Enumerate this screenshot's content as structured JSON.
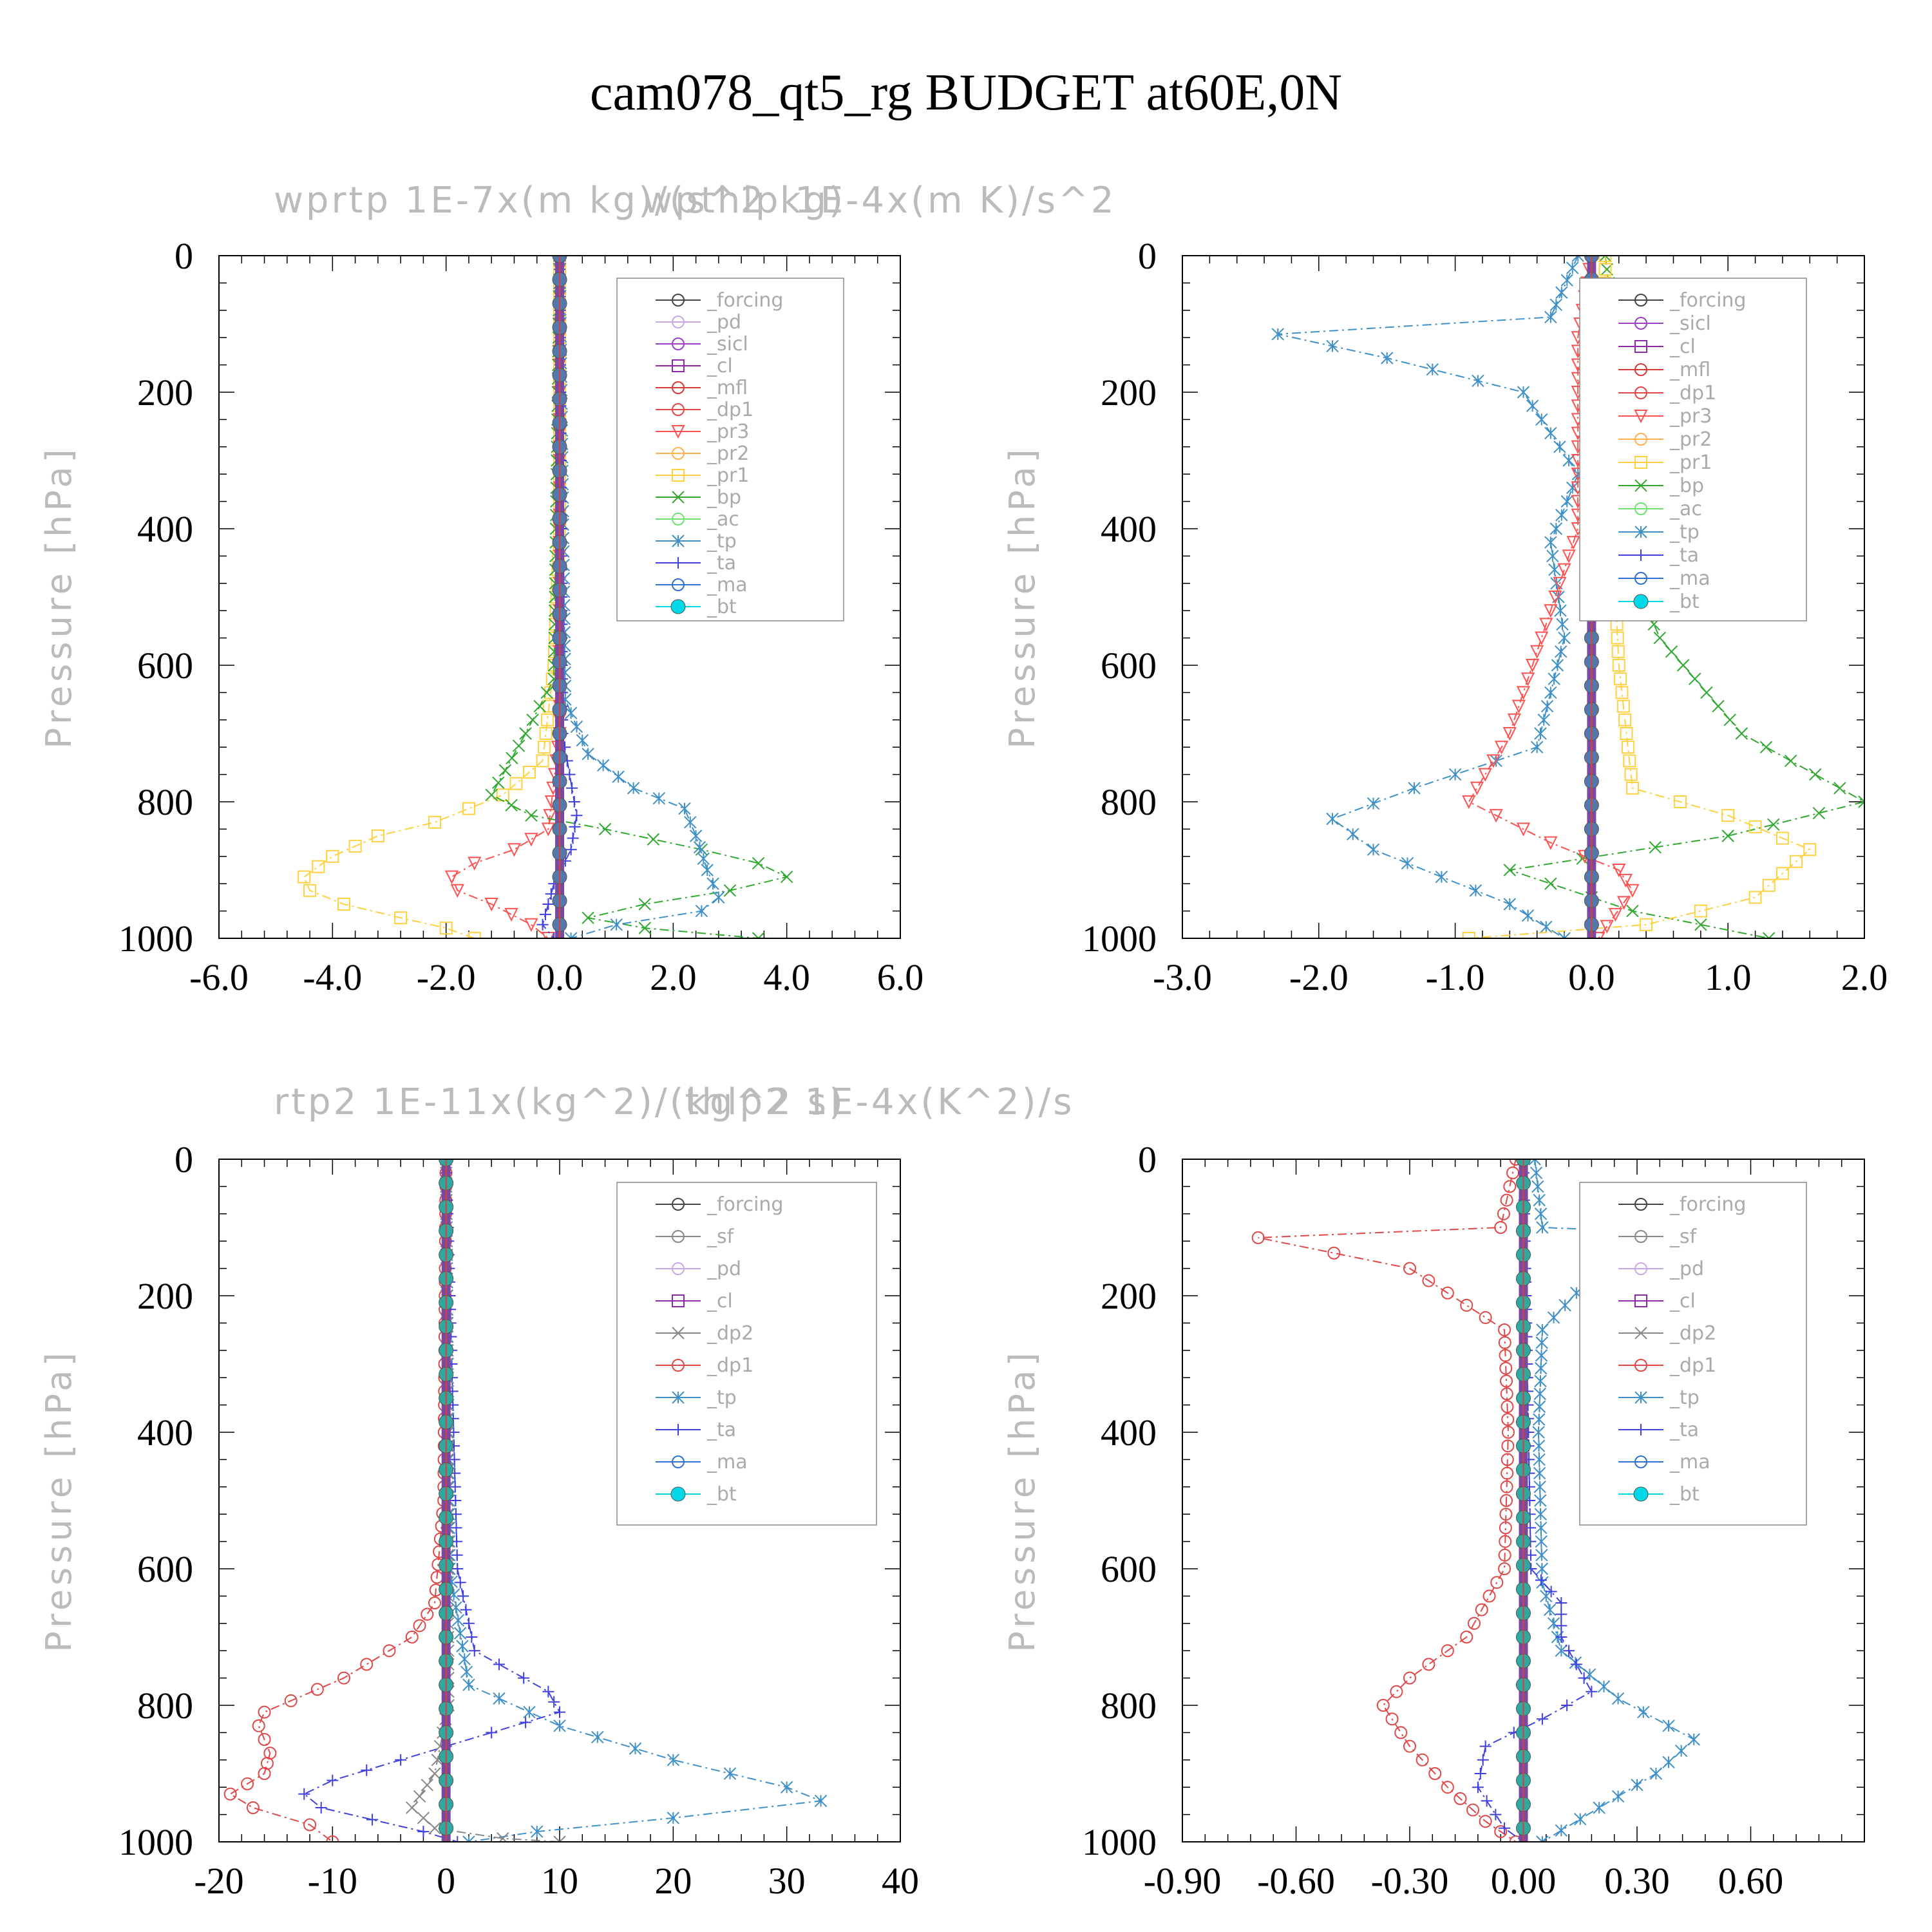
{
  "figure": {
    "title": "cam078_qt5_rg  BUDGET at60E,0N"
  },
  "colors": {
    "_forcing": "#444444",
    "_pd": "#c8a8e8",
    "_sicl": "#9a40c8",
    "_cl": "#8a2aa8",
    "_mfl": "#d83838",
    "_dp1": "#e04848",
    "_pr3": "#ff5050",
    "_pr2": "#ffb050",
    "_pr1": "#ffd040",
    "_bp": "#30a830",
    "_ac": "#70e070",
    "_tp": "#4090c8",
    "_ta": "#4040e0",
    "_ma": "#3070d0",
    "_bt": "#00d8e8"
  },
  "chart_data": [
    {
      "id": "wprtp",
      "type": "line",
      "title": "wprtp  1E-7x(m kg)/(s^2 kg)",
      "xlabel": "",
      "ylabel": "Pressure [hPa]",
      "xlim": [
        -6,
        6
      ],
      "ylim": [
        1000,
        0
      ],
      "xticks": [
        "-6.0",
        "-4.0",
        "-2.0",
        "0.0",
        "2.0",
        "4.0",
        "6.0"
      ],
      "xtick_values": [
        -6,
        -4,
        -2,
        0,
        2,
        4,
        6
      ],
      "yticks": [
        "0",
        "200",
        "400",
        "600",
        "800",
        "1000"
      ],
      "ytick_values": [
        0,
        200,
        400,
        600,
        800,
        1000
      ],
      "legend": [
        "_forcing",
        "_pd",
        "_sicl",
        "_cl",
        "_mfl",
        "_dp1",
        "_pr3",
        "_pr2",
        "_pr1",
        "_bp",
        "_ac",
        "_tp",
        "_ta",
        "_ma",
        "_bt"
      ],
      "series": [
        {
          "name": "_pr1",
          "x": [
            0,
            0,
            -0.1,
            -0.3,
            -1.0,
            -2.2,
            -3.2,
            -4.0,
            -4.5,
            -4.4,
            -3.8,
            -2.8,
            -2.0,
            -1.5
          ],
          "y": [
            0,
            400,
            600,
            740,
            790,
            830,
            850,
            880,
            910,
            930,
            950,
            970,
            985,
            1000
          ]
        },
        {
          "name": "_pr3",
          "x": [
            0,
            0,
            -0.2,
            -0.8,
            -1.5,
            -1.9,
            -1.8,
            -1.2,
            -0.5,
            -0.2
          ],
          "y": [
            0,
            700,
            840,
            870,
            890,
            910,
            930,
            950,
            980,
            1000
          ]
        },
        {
          "name": "_bp",
          "x": [
            0,
            -0.1,
            -0.6,
            -1.2,
            -0.5,
            0.8,
            2.5,
            3.5,
            4.0,
            3.0,
            1.5,
            0.5,
            1.5,
            3.5
          ],
          "y": [
            0,
            620,
            700,
            790,
            820,
            840,
            870,
            890,
            910,
            930,
            950,
            970,
            985,
            1000
          ]
        },
        {
          "name": "_tp",
          "x": [
            0,
            0.1,
            0.5,
            1.3,
            2.2,
            2.4,
            2.6,
            2.8,
            2.5,
            1.0,
            0.2
          ],
          "y": [
            0,
            650,
            730,
            780,
            810,
            850,
            900,
            940,
            960,
            980,
            1000
          ]
        },
        {
          "name": "_ta",
          "x": [
            0,
            0.05,
            0.3,
            0.2,
            -0.1,
            -0.2,
            -0.3,
            -0.1
          ],
          "y": [
            0,
            700,
            820,
            870,
            920,
            950,
            980,
            1000
          ]
        },
        {
          "name": "_bt",
          "x": [
            0,
            0,
            0,
            0,
            0,
            0
          ],
          "y": [
            0,
            200,
            400,
            600,
            800,
            1000
          ]
        }
      ]
    },
    {
      "id": "wpthlp",
      "type": "line",
      "title": "wpthlp  1E-4x(m K)/s^2",
      "xlabel": "",
      "ylabel": "Pressure [hPa]",
      "xlim": [
        -3,
        2
      ],
      "ylim": [
        1000,
        0
      ],
      "xticks": [
        "-3.0",
        "-2.0",
        "-1.0",
        "0.0",
        "1.0",
        "2.0"
      ],
      "xtick_values": [
        -3,
        -2,
        -1,
        0,
        1,
        2
      ],
      "yticks": [
        "0",
        "200",
        "400",
        "600",
        "800",
        "1000"
      ],
      "ytick_values": [
        0,
        200,
        400,
        600,
        800,
        1000
      ],
      "legend": [
        "_forcing",
        "_sicl",
        "_cl",
        "_mfl",
        "_dp1",
        "_pr3",
        "_pr2",
        "_pr1",
        "_bp",
        "_ac",
        "_tp",
        "_ta",
        "_ma",
        "_bt"
      ],
      "series": [
        {
          "name": "_tp",
          "x": [
            -0.1,
            -0.3,
            -2.3,
            -1.5,
            -0.5,
            -0.3,
            -0.1,
            -0.3,
            -0.2,
            -0.4,
            -1.3,
            -1.9,
            -1.6,
            -1.1,
            -0.6,
            -0.2
          ],
          "y": [
            0,
            90,
            115,
            150,
            200,
            260,
            320,
            420,
            560,
            720,
            780,
            825,
            870,
            910,
            950,
            1000
          ]
        },
        {
          "name": "_bp",
          "x": [
            0.1,
            0.15,
            1.1,
            0.5,
            0.25,
            0.2,
            0.5,
            1.1,
            2.0,
            1.0,
            -0.6,
            0.3,
            1.3
          ],
          "y": [
            0,
            80,
            115,
            180,
            300,
            420,
            560,
            700,
            800,
            850,
            900,
            960,
            1000
          ]
        },
        {
          "name": "_pr1",
          "x": [
            0.1,
            0.1,
            1.4,
            0.2,
            0.15,
            0.2,
            0.3,
            1.0,
            1.6,
            1.2,
            0.4,
            -0.9
          ],
          "y": [
            0,
            100,
            115,
            200,
            400,
            600,
            780,
            820,
            870,
            940,
            980,
            1000
          ]
        },
        {
          "name": "_pr3",
          "x": [
            0,
            -0.1,
            -0.1,
            -0.6,
            -0.9,
            -0.3,
            0.2,
            0.3,
            0.05
          ],
          "y": [
            0,
            120,
            400,
            700,
            800,
            860,
            900,
            930,
            1000
          ]
        },
        {
          "name": "_bt",
          "x": [
            0,
            0,
            0,
            0,
            0,
            0
          ],
          "y": [
            0,
            200,
            400,
            600,
            800,
            1000
          ]
        }
      ]
    },
    {
      "id": "rtp2",
      "type": "line",
      "title": "rtp2  1E-11x(kg^2)/(kg^2 s)",
      "xlabel": "",
      "ylabel": "Pressure [hPa]",
      "xlim": [
        -20,
        40
      ],
      "ylim": [
        1000,
        0
      ],
      "xticks": [
        "-20",
        "-10",
        "0",
        "10",
        "20",
        "30",
        "40"
      ],
      "xtick_values": [
        -20,
        -10,
        0,
        10,
        20,
        30,
        40
      ],
      "yticks": [
        "0",
        "200",
        "400",
        "600",
        "800",
        "1000"
      ],
      "ytick_values": [
        0,
        200,
        400,
        600,
        800,
        1000
      ],
      "legend": [
        "_forcing",
        "_sf",
        "_pd",
        "_cl",
        "_dp2",
        "_dp1",
        "_tp",
        "_ta",
        "_ma",
        "_bt"
      ],
      "series": [
        {
          "name": "_dp1",
          "x": [
            0,
            -0.2,
            -1.0,
            -3.0,
            -9.0,
            -16.0,
            -16.5,
            -15.5,
            -16.0,
            -19.0,
            -17.0,
            -12.0,
            -10.0
          ],
          "y": [
            0,
            500,
            650,
            700,
            760,
            810,
            830,
            870,
            900,
            930,
            950,
            975,
            1000
          ]
        },
        {
          "name": "_ta",
          "x": [
            0,
            1.0,
            2.5,
            9.0,
            10.0,
            4.0,
            -4.0,
            -10.0,
            -12.5,
            -11.0,
            -2.0,
            1.0
          ],
          "y": [
            0,
            600,
            720,
            780,
            810,
            840,
            880,
            910,
            930,
            950,
            985,
            1000
          ]
        },
        {
          "name": "_tp",
          "x": [
            0,
            0.3,
            2.0,
            10.0,
            20.0,
            30.0,
            33.0,
            20.0,
            8.0,
            2.0
          ],
          "y": [
            0,
            600,
            770,
            830,
            880,
            920,
            940,
            965,
            985,
            1000
          ]
        },
        {
          "name": "_dp2",
          "x": [
            0,
            0.2,
            -1.0,
            -3.0,
            -1.0,
            5.0,
            10.0
          ],
          "y": [
            0,
            800,
            900,
            950,
            980,
            995,
            1000
          ]
        },
        {
          "name": "_bt",
          "x": [
            0,
            0,
            0,
            0,
            0,
            0
          ],
          "y": [
            0,
            200,
            400,
            600,
            800,
            1000
          ]
        }
      ]
    },
    {
      "id": "thlp2",
      "type": "line",
      "title": "thlp2  1E-4x(K^2)/s",
      "xlabel": "",
      "ylabel": "Pressure [hPa]",
      "xlim": [
        -0.9,
        0.9
      ],
      "ylim": [
        1000,
        0
      ],
      "xticks": [
        "-0.90",
        "-0.60",
        "-0.30",
        "0.00",
        "0.30",
        "0.60"
      ],
      "xtick_values": [
        -0.9,
        -0.6,
        -0.3,
        0.0,
        0.3,
        0.6
      ],
      "yticks": [
        "0",
        "200",
        "400",
        "600",
        "800",
        "1000"
      ],
      "ytick_values": [
        0,
        200,
        400,
        600,
        800,
        1000
      ],
      "legend": [
        "_forcing",
        "_sf",
        "_pd",
        "_cl",
        "_dp2",
        "_dp1",
        "_tp",
        "_ta",
        "_ma",
        "_bt"
      ],
      "series": [
        {
          "name": "_dp1",
          "x": [
            -0.02,
            -0.06,
            -0.7,
            -0.3,
            -0.05,
            -0.04,
            -0.05,
            -0.15,
            -0.3,
            -0.37,
            -0.3,
            -0.2,
            -0.1,
            -0.02
          ],
          "y": [
            0,
            100,
            115,
            160,
            250,
            400,
            600,
            700,
            760,
            800,
            860,
            920,
            970,
            1000
          ]
        },
        {
          "name": "_tp",
          "x": [
            0.03,
            0.05,
            0.72,
            0.2,
            0.05,
            0.04,
            0.05,
            0.1,
            0.25,
            0.45,
            0.35,
            0.2,
            0.05
          ],
          "y": [
            0,
            100,
            115,
            160,
            250,
            400,
            620,
            720,
            790,
            850,
            900,
            950,
            1000
          ]
        },
        {
          "name": "_ta",
          "x": [
            0,
            0.02,
            0.1,
            0.1,
            0.18,
            0.05,
            -0.1,
            -0.12,
            -0.05,
            0.0
          ],
          "y": [
            0,
            600,
            650,
            700,
            780,
            820,
            860,
            920,
            980,
            1000
          ]
        },
        {
          "name": "_bt",
          "x": [
            0,
            0,
            0,
            0,
            0,
            0
          ],
          "y": [
            0,
            200,
            400,
            600,
            800,
            1000
          ]
        }
      ]
    }
  ]
}
